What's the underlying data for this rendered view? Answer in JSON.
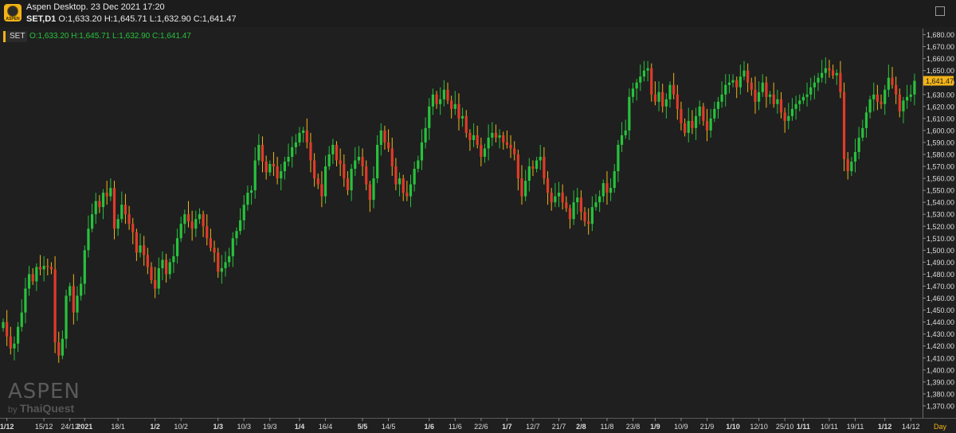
{
  "header": {
    "logo_text": "ASPEN",
    "window_title": "Aspen Desktop. 23 Dec 2021 17:20",
    "symbol_tf": "SET,D1",
    "ohlc": "O:1,633.20 H:1,645.71 L:1,632.90 C:1,641.47"
  },
  "legend": {
    "symbol": "SET",
    "ohlc": "O:1,633.20 H:1,645.71 L:1,632.90 C:1,641.47"
  },
  "watermark": {
    "main": "ASPEN",
    "by": "by",
    "brand": "ThaiQuest"
  },
  "colors": {
    "up": "#27c23d",
    "down": "#e03b2a",
    "wick_down": "#f2b318",
    "bg": "#1f1f1f",
    "last_price": "#f2b318"
  },
  "chart_data": {
    "type": "candlestick",
    "title": "SET,D1",
    "ylim": [
      1360,
      1685
    ],
    "y_ticks": [
      "1,680.00",
      "1,670.00",
      "1,660.00",
      "1,650.00",
      "1,640.00",
      "1,630.00",
      "1,620.00",
      "1,610.00",
      "1,600.00",
      "1,590.00",
      "1,580.00",
      "1,570.00",
      "1,560.00",
      "1,550.00",
      "1,540.00",
      "1,530.00",
      "1,520.00",
      "1,510.00",
      "1,500.00",
      "1,490.00",
      "1,480.00",
      "1,470.00",
      "1,460.00",
      "1,450.00",
      "1,440.00",
      "1,430.00",
      "1,420.00",
      "1,410.00",
      "1,400.00",
      "1,390.00",
      "1,380.00",
      "1,370.00"
    ],
    "x_axis_label": "Day",
    "x_labels": [
      {
        "label": "1/12",
        "idx": 1,
        "bold": true
      },
      {
        "label": "15/12",
        "idx": 11,
        "bold": false
      },
      {
        "label": "24/12",
        "idx": 18,
        "bold": false
      },
      {
        "label": "2021",
        "idx": 22,
        "bold": true
      },
      {
        "label": "18/1",
        "idx": 31,
        "bold": false
      },
      {
        "label": "1/2",
        "idx": 41,
        "bold": true
      },
      {
        "label": "10/2",
        "idx": 48,
        "bold": false
      },
      {
        "label": "1/3",
        "idx": 58,
        "bold": true
      },
      {
        "label": "10/3",
        "idx": 65,
        "bold": false
      },
      {
        "label": "19/3",
        "idx": 72,
        "bold": false
      },
      {
        "label": "1/4",
        "idx": 80,
        "bold": true
      },
      {
        "label": "16/4",
        "idx": 87,
        "bold": false
      },
      {
        "label": "5/5",
        "idx": 97,
        "bold": true
      },
      {
        "label": "14/5",
        "idx": 104,
        "bold": false
      },
      {
        "label": "1/6",
        "idx": 115,
        "bold": true
      },
      {
        "label": "11/6",
        "idx": 122,
        "bold": false
      },
      {
        "label": "22/6",
        "idx": 129,
        "bold": false
      },
      {
        "label": "1/7",
        "idx": 136,
        "bold": true
      },
      {
        "label": "12/7",
        "idx": 143,
        "bold": false
      },
      {
        "label": "21/7",
        "idx": 150,
        "bold": false
      },
      {
        "label": "2/8",
        "idx": 156,
        "bold": true
      },
      {
        "label": "11/8",
        "idx": 163,
        "bold": false
      },
      {
        "label": "23/8",
        "idx": 170,
        "bold": false
      },
      {
        "label": "1/9",
        "idx": 176,
        "bold": true
      },
      {
        "label": "10/9",
        "idx": 183,
        "bold": false
      },
      {
        "label": "21/9",
        "idx": 190,
        "bold": false
      },
      {
        "label": "1/10",
        "idx": 197,
        "bold": true
      },
      {
        "label": "12/10",
        "idx": 204,
        "bold": false
      },
      {
        "label": "25/10",
        "idx": 211,
        "bold": false
      },
      {
        "label": "1/11",
        "idx": 216,
        "bold": true
      },
      {
        "label": "10/11",
        "idx": 223,
        "bold": false
      },
      {
        "label": "19/11",
        "idx": 230,
        "bold": false
      },
      {
        "label": "1/12",
        "idx": 238,
        "bold": true
      },
      {
        "label": "14/12",
        "idx": 245,
        "bold": false
      }
    ],
    "last_price": "1,641.47",
    "closes": [
      1440,
      1428,
      1418,
      1422,
      1436,
      1448,
      1468,
      1480,
      1474,
      1486,
      1484,
      1487,
      1486,
      1484,
      1423,
      1412,
      1426,
      1462,
      1470,
      1448,
      1462,
      1472,
      1500,
      1518,
      1530,
      1541,
      1536,
      1548,
      1545,
      1552,
      1518,
      1526,
      1538,
      1530,
      1522,
      1515,
      1498,
      1504,
      1496,
      1486,
      1475,
      1468,
      1485,
      1492,
      1480,
      1490,
      1495,
      1510,
      1522,
      1530,
      1524,
      1518,
      1526,
      1530,
      1520,
      1510,
      1502,
      1498,
      1482,
      1485,
      1490,
      1495,
      1510,
      1516,
      1525,
      1538,
      1548,
      1550,
      1575,
      1588,
      1574,
      1565,
      1572,
      1570,
      1560,
      1566,
      1574,
      1578,
      1586,
      1590,
      1598,
      1600,
      1590,
      1575,
      1560,
      1555,
      1545,
      1570,
      1580,
      1588,
      1575,
      1572,
      1560,
      1550,
      1568,
      1575,
      1578,
      1570,
      1555,
      1542,
      1560,
      1588,
      1600,
      1590,
      1585,
      1570,
      1555,
      1560,
      1548,
      1545,
      1555,
      1568,
      1575,
      1590,
      1602,
      1620,
      1630,
      1622,
      1626,
      1634,
      1625,
      1618,
      1622,
      1610,
      1612,
      1598,
      1592,
      1596,
      1588,
      1578,
      1585,
      1594,
      1598,
      1594,
      1596,
      1590,
      1588,
      1585,
      1580,
      1560,
      1545,
      1558,
      1570,
      1568,
      1575,
      1578,
      1560,
      1548,
      1540,
      1545,
      1548,
      1540,
      1535,
      1526,
      1540,
      1544,
      1532,
      1524,
      1522,
      1536,
      1540,
      1545,
      1556,
      1548,
      1552,
      1566,
      1588,
      1596,
      1600,
      1628,
      1635,
      1640,
      1645,
      1650,
      1652,
      1630,
      1624,
      1632,
      1620,
      1626,
      1638,
      1630,
      1618,
      1606,
      1598,
      1608,
      1602,
      1612,
      1620,
      1608,
      1600,
      1610,
      1618,
      1624,
      1630,
      1638,
      1640,
      1642,
      1636,
      1645,
      1650,
      1640,
      1634,
      1624,
      1632,
      1640,
      1628,
      1630,
      1622,
      1626,
      1615,
      1608,
      1612,
      1618,
      1622,
      1625,
      1628,
      1630,
      1636,
      1640,
      1644,
      1648,
      1652,
      1650,
      1646,
      1648,
      1632,
      1576,
      1566,
      1574,
      1582,
      1594,
      1602,
      1615,
      1626,
      1630,
      1624,
      1622,
      1634,
      1644,
      1638,
      1630,
      1616,
      1625,
      1628,
      1630,
      1641.47
    ]
  }
}
